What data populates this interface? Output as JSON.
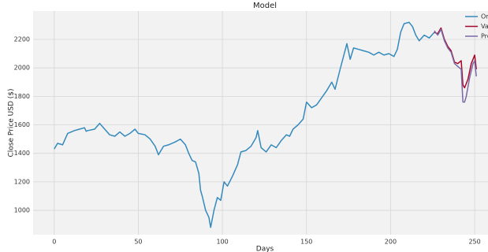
{
  "chart_data": {
    "type": "line",
    "title": "Model",
    "xlabel": "Days",
    "ylabel": "Close Price USD ($)",
    "xlim": [
      -12.55,
      263.55
    ],
    "ylim": [
      829,
      2399
    ],
    "xticks": [
      0,
      50,
      100,
      150,
      200,
      250
    ],
    "yticks": [
      1000,
      1200,
      1400,
      1600,
      1800,
      2000,
      2200
    ],
    "grid": true,
    "legend": "upper right",
    "series": [
      {
        "name": "Or",
        "color": "#348abd",
        "x": [
          0,
          2,
          5,
          8,
          12,
          15,
          18,
          19,
          20,
          24,
          27,
          30,
          33,
          36,
          39,
          42,
          45,
          48,
          50,
          54,
          57,
          60,
          62,
          65,
          68,
          72,
          75,
          78,
          80,
          82,
          84,
          86,
          87,
          88,
          90,
          92,
          93,
          95,
          97,
          99,
          101,
          103,
          106,
          109,
          111,
          114,
          117,
          120,
          121,
          123,
          126,
          129,
          132,
          135,
          138,
          140,
          142,
          145,
          148,
          150,
          153,
          156,
          159,
          162,
          165,
          167,
          170,
          172,
          174,
          176,
          178,
          181,
          184,
          187,
          190,
          193,
          196,
          199,
          202,
          204,
          206,
          208,
          211,
          213,
          215,
          217,
          220,
          223,
          226
        ],
        "values": [
          1430,
          1470,
          1460,
          1540,
          1560,
          1570,
          1580,
          1555,
          1560,
          1570,
          1610,
          1570,
          1530,
          1520,
          1550,
          1520,
          1540,
          1570,
          1540,
          1530,
          1500,
          1450,
          1390,
          1450,
          1460,
          1480,
          1500,
          1460,
          1400,
          1350,
          1340,
          1260,
          1140,
          1100,
          1000,
          950,
          880,
          1000,
          1090,
          1070,
          1200,
          1170,
          1240,
          1320,
          1410,
          1420,
          1450,
          1510,
          1560,
          1440,
          1410,
          1460,
          1440,
          1490,
          1530,
          1520,
          1570,
          1600,
          1640,
          1760,
          1720,
          1740,
          1790,
          1840,
          1900,
          1850,
          1990,
          2080,
          2170,
          2060,
          2140,
          2130,
          2120,
          2110,
          2090,
          2110,
          2090,
          2100,
          2080,
          2130,
          2250,
          2310,
          2320,
          2290,
          2230,
          2190,
          2230,
          2210,
          2250
        ]
      },
      {
        "name": "Val",
        "color": "#a60628",
        "x": [
          226,
          228,
          230,
          232,
          234,
          236,
          238,
          240,
          242,
          243,
          244,
          246,
          248,
          249,
          250,
          251
        ],
        "values": [
          2250,
          2240,
          2280,
          2200,
          2150,
          2120,
          2040,
          2030,
          2050,
          1880,
          1860,
          1920,
          2030,
          2060,
          2090,
          1990
        ]
      },
      {
        "name": "Pre",
        "color": "#7a68a6",
        "x": [
          226,
          228,
          230,
          232,
          234,
          236,
          238,
          240,
          242,
          243,
          244,
          245,
          247,
          249,
          250,
          251
        ],
        "values": [
          2260,
          2230,
          2270,
          2190,
          2140,
          2110,
          2030,
          2010,
          1990,
          1760,
          1760,
          1800,
          1930,
          2030,
          2050,
          1940
        ]
      }
    ]
  }
}
